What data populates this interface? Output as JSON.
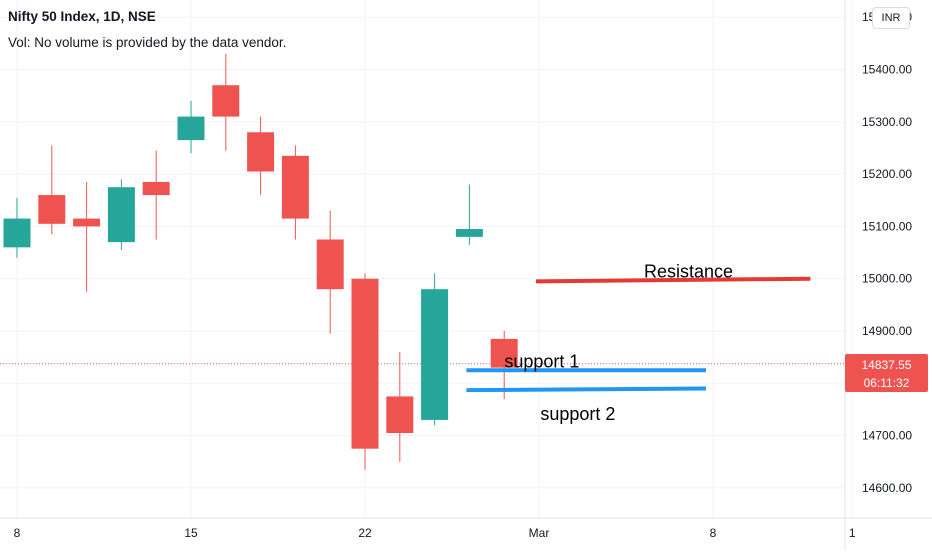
{
  "header": {
    "symbol_line": "Nifty 50 Index, 1D, NSE",
    "volume_note": "Vol: No volume is provided by the data vendor."
  },
  "currency_button": "INR",
  "last_price": {
    "value": "14837.55",
    "countdown": "06:11:32",
    "color": "#ef5350"
  },
  "colors": {
    "up": "#26a69a",
    "down": "#ef5350",
    "resistance": "#e53935",
    "support": "#2196f3",
    "grid": "#f0f3fa",
    "axis_text": "#131722"
  },
  "chart_data": {
    "type": "candlestick",
    "ylim": [
      14550,
      15510
    ],
    "y_ticks": [
      "15500.00",
      "15400.00",
      "15300.00",
      "15200.00",
      "15100.00",
      "15000.00",
      "14900.00",
      "14800.00",
      "14700.00",
      "14600.00"
    ],
    "x_ticks": [
      {
        "label": "8",
        "slot": 0
      },
      {
        "label": "15",
        "slot": 5
      },
      {
        "label": "22",
        "slot": 10
      },
      {
        "label": "Mar",
        "slot": 15
      },
      {
        "label": "8",
        "slot": 20
      },
      {
        "label": "1",
        "slot": 24
      }
    ],
    "candles": [
      {
        "slot": 0,
        "open": 15060,
        "high": 15155,
        "low": 15040,
        "close": 15115
      },
      {
        "slot": 1,
        "open": 15160,
        "high": 15255,
        "low": 15085,
        "close": 15105
      },
      {
        "slot": 2,
        "open": 15115,
        "high": 15185,
        "low": 14975,
        "close": 15100
      },
      {
        "slot": 3,
        "open": 15070,
        "high": 15190,
        "low": 15055,
        "close": 15175
      },
      {
        "slot": 4,
        "open": 15185,
        "high": 15245,
        "low": 15075,
        "close": 15160
      },
      {
        "slot": 5,
        "open": 15265,
        "high": 15340,
        "low": 15240,
        "close": 15310
      },
      {
        "slot": 6,
        "open": 15370,
        "high": 15430,
        "low": 15245,
        "close": 15310
      },
      {
        "slot": 7,
        "open": 15280,
        "high": 15310,
        "low": 15160,
        "close": 15205
      },
      {
        "slot": 8,
        "open": 15235,
        "high": 15255,
        "low": 15075,
        "close": 15115
      },
      {
        "slot": 9,
        "open": 15075,
        "high": 15130,
        "low": 14895,
        "close": 14980
      },
      {
        "slot": 10,
        "open": 15000,
        "high": 15010,
        "low": 14635,
        "close": 14675
      },
      {
        "slot": 11,
        "open": 14775,
        "high": 14860,
        "low": 14650,
        "close": 14705
      },
      {
        "slot": 12,
        "open": 14730,
        "high": 15010,
        "low": 14720,
        "close": 14980
      },
      {
        "slot": 13,
        "open": 15080,
        "high": 15180,
        "low": 15065,
        "close": 15095
      },
      {
        "slot": 14,
        "open": 14885,
        "high": 14900,
        "low": 14770,
        "close": 14830
      }
    ],
    "current_price": 14837.55,
    "annotations": [
      {
        "label": "Resistance",
        "from_slot": 15,
        "to_slot": 23,
        "y_start": 14995,
        "y_end": 15000,
        "color": "#e53935"
      },
      {
        "label": "support 1",
        "from_slot": 13,
        "to_slot": 20,
        "y_start": 14825,
        "y_end": 14825,
        "color": "#2196f3"
      },
      {
        "label": "support 2",
        "from_slot": 13,
        "to_slot": 20,
        "y_start": 14787,
        "y_end": 14790,
        "color": "#2196f3"
      }
    ]
  }
}
